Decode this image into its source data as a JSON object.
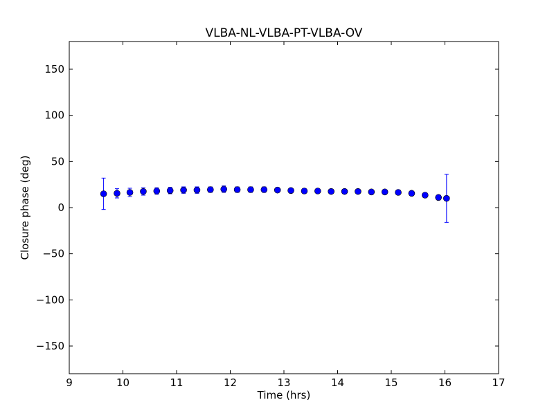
{
  "chart_data": {
    "type": "scatter",
    "title": "VLBA-NL-VLBA-PT-VLBA-OV",
    "xlabel": "Time (hrs)",
    "ylabel": "Closure phase (deg)",
    "xlim": [
      9,
      17
    ],
    "ylim": [
      -180,
      180
    ],
    "xticks": [
      9,
      10,
      11,
      12,
      13,
      14,
      15,
      16,
      17
    ],
    "xtick_labels": [
      "9",
      "10",
      "11",
      "12",
      "13",
      "14",
      "15",
      "16",
      "17"
    ],
    "yticks": [
      -150,
      -100,
      -50,
      0,
      50,
      100,
      150
    ],
    "ytick_labels": [
      "−150",
      "−100",
      "−50",
      "0",
      "50",
      "100",
      "150"
    ],
    "grid": false,
    "marker_color": "#0000ff",
    "series": [
      {
        "points": [
          {
            "x": 9.64,
            "y": 15,
            "err": 17
          },
          {
            "x": 9.89,
            "y": 15.5,
            "err": 5
          },
          {
            "x": 10.13,
            "y": 16.5,
            "err": 4.5
          },
          {
            "x": 10.38,
            "y": 17.5,
            "err": 4
          },
          {
            "x": 10.63,
            "y": 18,
            "err": 3.5
          },
          {
            "x": 10.88,
            "y": 18.5,
            "err": 3.5
          },
          {
            "x": 11.13,
            "y": 19,
            "err": 3.5
          },
          {
            "x": 11.38,
            "y": 19,
            "err": 3.5
          },
          {
            "x": 11.63,
            "y": 19.5,
            "err": 3
          },
          {
            "x": 11.88,
            "y": 20,
            "err": 3.5
          },
          {
            "x": 12.13,
            "y": 19.5,
            "err": 3
          },
          {
            "x": 12.38,
            "y": 19.5,
            "err": 3
          },
          {
            "x": 12.63,
            "y": 19.5,
            "err": 3
          },
          {
            "x": 12.88,
            "y": 19,
            "err": 2.5
          },
          {
            "x": 13.13,
            "y": 18.5,
            "err": 2.5
          },
          {
            "x": 13.38,
            "y": 18,
            "err": 2.5
          },
          {
            "x": 13.63,
            "y": 18,
            "err": 2
          },
          {
            "x": 13.88,
            "y": 17.5,
            "err": 2
          },
          {
            "x": 14.13,
            "y": 17.5,
            "err": 2
          },
          {
            "x": 14.38,
            "y": 17.5,
            "err": 2
          },
          {
            "x": 14.63,
            "y": 17,
            "err": 2
          },
          {
            "x": 14.88,
            "y": 17,
            "err": 2
          },
          {
            "x": 15.13,
            "y": 16.5,
            "err": 2
          },
          {
            "x": 15.38,
            "y": 15.5,
            "err": 2
          },
          {
            "x": 15.63,
            "y": 13.5,
            "err": 2
          },
          {
            "x": 15.88,
            "y": 11,
            "err": 2.5
          },
          {
            "x": 16.03,
            "y": 10,
            "err": 26
          }
        ]
      }
    ]
  }
}
